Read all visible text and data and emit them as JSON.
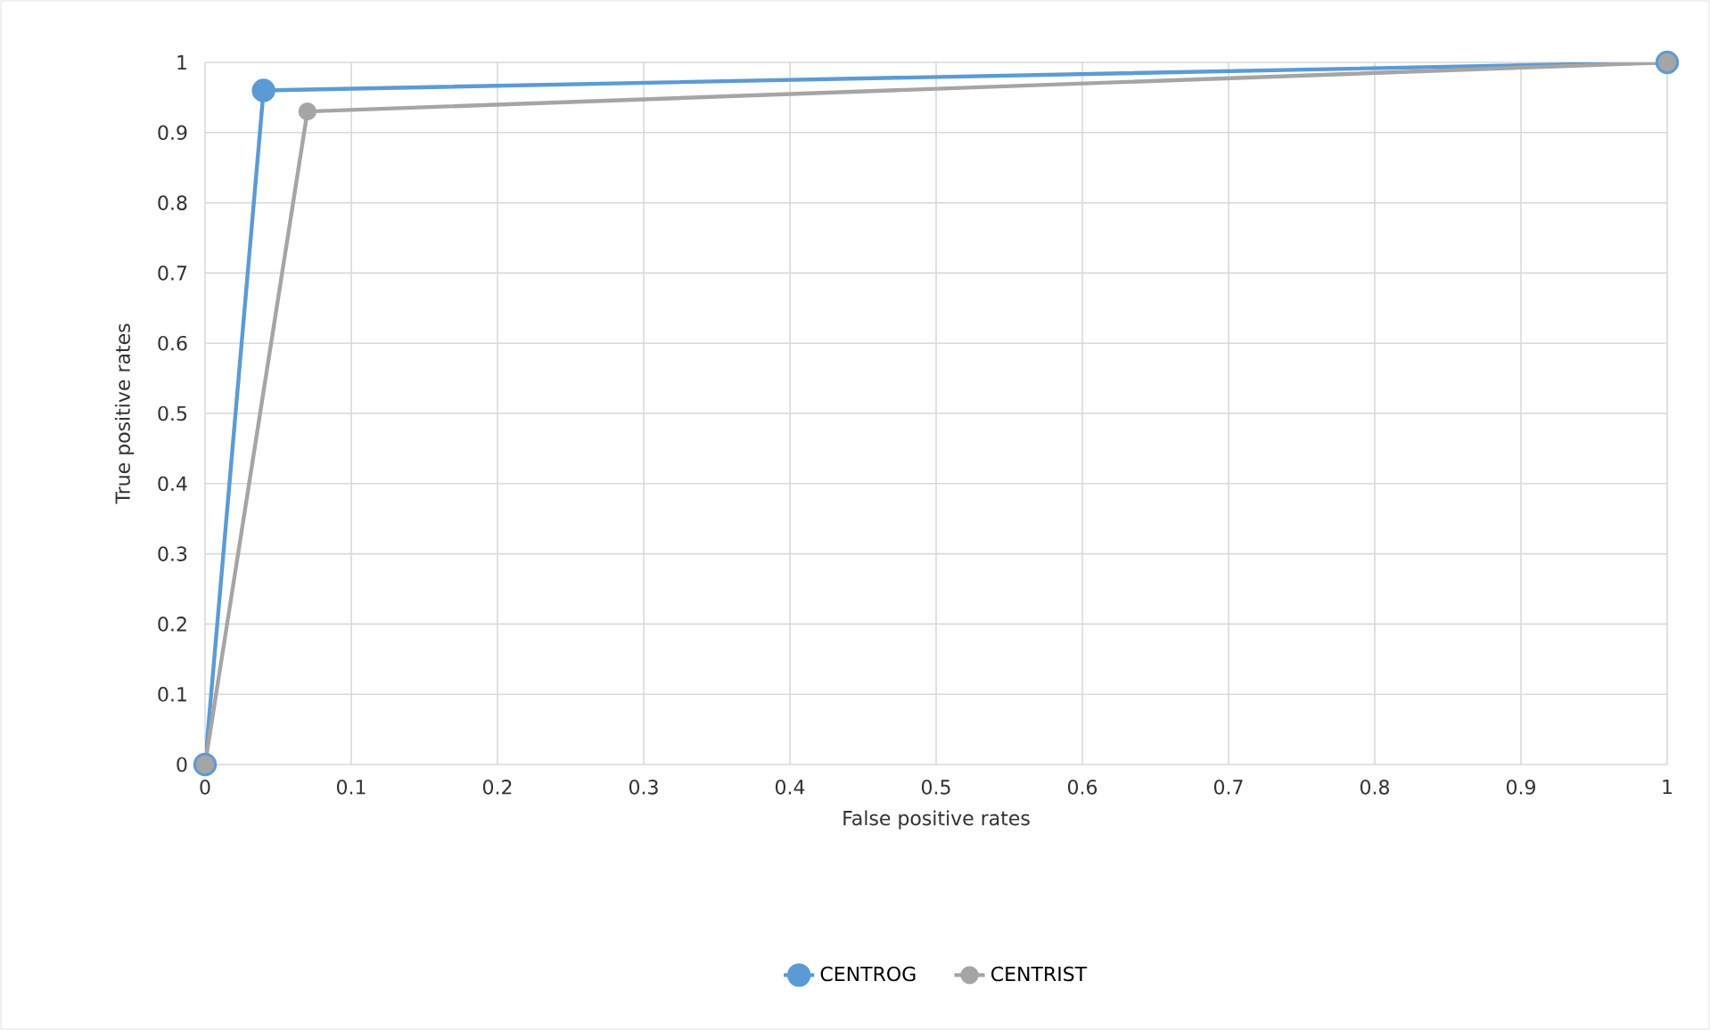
{
  "chart_data": {
    "type": "line",
    "xlabel": "False positive rates",
    "ylabel": "True positive rates",
    "xlim": [
      0,
      1
    ],
    "ylim": [
      0,
      1
    ],
    "xticks": [
      0,
      0.1,
      0.2,
      0.3,
      0.4,
      0.5,
      0.6,
      0.7,
      0.8,
      0.9,
      1
    ],
    "yticks": [
      0,
      0.1,
      0.2,
      0.3,
      0.4,
      0.5,
      0.6,
      0.7,
      0.8,
      0.9,
      1
    ],
    "grid": true,
    "legend": "bottom",
    "marker": "circle",
    "line_style": "solid",
    "series": [
      {
        "name": "CENTROG",
        "color": "#5b9bd5",
        "x": [
          0,
          0.04,
          1
        ],
        "values": [
          0,
          0.96,
          1
        ]
      },
      {
        "name": "CENTRIST",
        "color": "#a5a5a5",
        "x": [
          0,
          0.07,
          1
        ],
        "values": [
          0,
          0.93,
          1
        ]
      }
    ]
  }
}
